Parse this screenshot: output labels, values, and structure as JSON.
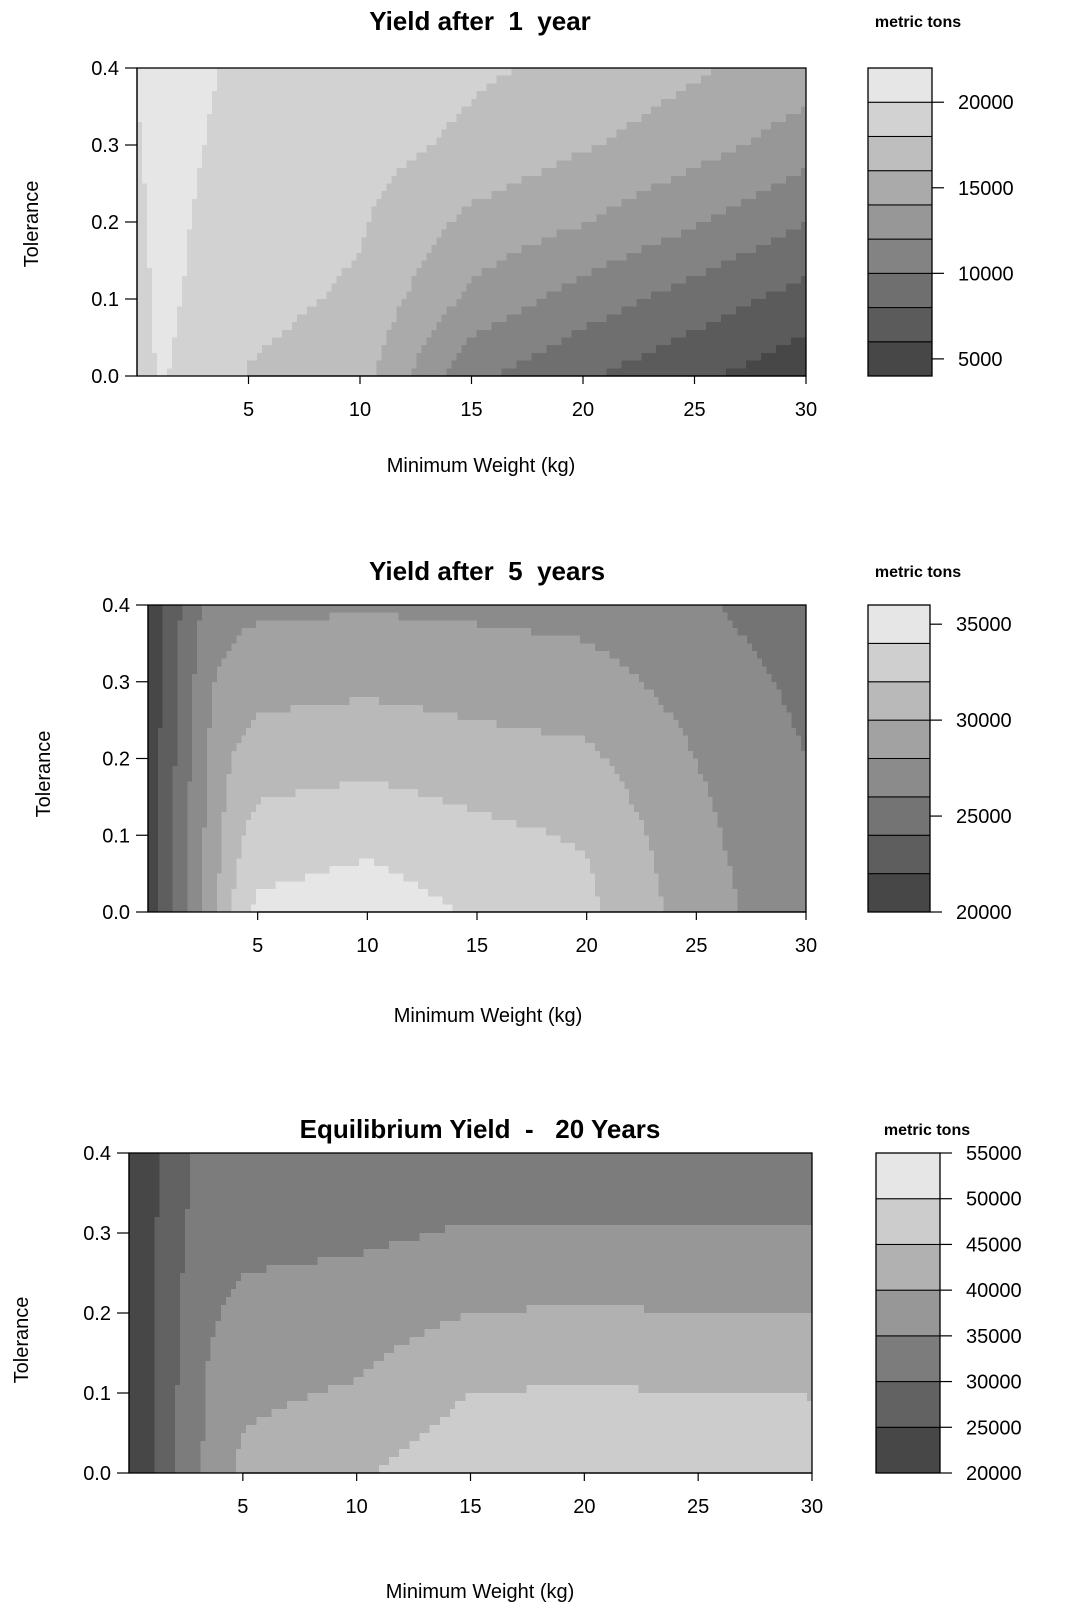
{
  "chart_data": [
    {
      "type": "filled-contour",
      "title": "Yield after  1  year",
      "xlabel": "Minimum Weight (kg)",
      "ylabel": "Tolerance",
      "legend_title": "metric tons",
      "xlim": [
        0,
        30
      ],
      "ylim": [
        0,
        0.4
      ],
      "x_ticks": [
        "5",
        "10",
        "15",
        "20",
        "25",
        "30"
      ],
      "y_ticks": [
        "0.0",
        "0.1",
        "0.2",
        "0.3",
        "0.4"
      ],
      "legend_ticks": [
        "5000",
        "10000",
        "15000",
        "20000"
      ],
      "legend_range": [
        4000,
        22000
      ],
      "levels": [
        4000,
        6000,
        8000,
        10000,
        12000,
        14000,
        16000,
        18000,
        20000,
        22000
      ],
      "x": [
        0,
        1,
        2,
        3,
        4,
        5,
        10,
        15,
        20,
        25,
        30
      ],
      "y": [
        0,
        0.1,
        0.2,
        0.3,
        0.4
      ],
      "z": [
        [
          19000,
          20200,
          19700,
          19100,
          18500,
          17900,
          16800,
          10500,
          8200,
          6400,
          4600
        ],
        [
          19300,
          20400,
          20000,
          19500,
          19100,
          18600,
          17700,
          13500,
          11100,
          9100,
          7200
        ],
        [
          19500,
          20600,
          20200,
          19700,
          19400,
          18900,
          18200,
          15500,
          14100,
          12200,
          10000
        ],
        [
          19800,
          20800,
          20400,
          20000,
          19700,
          19200,
          18800,
          17600,
          16200,
          14800,
          13000
        ],
        [
          20100,
          21000,
          20600,
          20200,
          19900,
          19500,
          19100,
          18300,
          17600,
          16300,
          15000
        ]
      ]
    },
    {
      "type": "filled-contour",
      "title": "Yield after  5  years",
      "xlabel": "Minimum Weight (kg)",
      "ylabel": "Tolerance",
      "legend_title": "metric tons",
      "xlim": [
        0,
        30
      ],
      "ylim": [
        0,
        0.4
      ],
      "x_ticks": [
        "5",
        "10",
        "15",
        "20",
        "25",
        "30"
      ],
      "y_ticks": [
        "0.0",
        "0.1",
        "0.2",
        "0.3",
        "0.4"
      ],
      "legend_ticks": [
        "20000",
        "25000",
        "30000",
        "35000"
      ],
      "legend_range": [
        20000,
        36000
      ],
      "levels": [
        20000,
        22000,
        24000,
        26000,
        28000,
        30000,
        32000,
        34000,
        36000
      ],
      "x": [
        0,
        1,
        2,
        3,
        4,
        5,
        10,
        15,
        20,
        25,
        30
      ],
      "y": [
        0,
        0.1,
        0.2,
        0.3,
        0.4
      ],
      "z": [
        [
          20500,
          23500,
          26500,
          29500,
          32500,
          34500,
          35100,
          33800,
          32500,
          29000,
          26500
        ],
        [
          20500,
          23500,
          26500,
          29200,
          31500,
          32800,
          33500,
          32500,
          31800,
          28500,
          26300
        ],
        [
          20500,
          23300,
          26200,
          28800,
          30200,
          31000,
          31400,
          30800,
          30400,
          28000,
          26000
        ],
        [
          20400,
          23100,
          25800,
          28000,
          28800,
          29300,
          29600,
          29200,
          28800,
          27200,
          25500
        ],
        [
          20300,
          22800,
          25200,
          27000,
          27400,
          27600,
          27800,
          27600,
          27300,
          26300,
          24800
        ]
      ]
    },
    {
      "type": "filled-contour",
      "title": "Equilibrium Yield  -   20 Years",
      "xlabel": "Minimum Weight (kg)",
      "ylabel": "Tolerance",
      "legend_title": "metric tons",
      "xlim": [
        0,
        30
      ],
      "ylim": [
        0,
        0.4
      ],
      "x_ticks": [
        "5",
        "10",
        "15",
        "20",
        "25",
        "30"
      ],
      "y_ticks": [
        "0.0",
        "0.1",
        "0.2",
        "0.3",
        "0.4"
      ],
      "legend_ticks": [
        "20000",
        "25000",
        "30000",
        "35000",
        "40000",
        "45000",
        "50000",
        "55000"
      ],
      "legend_range": [
        20000,
        55000
      ],
      "levels": [
        20000,
        25000,
        30000,
        35000,
        40000,
        45000,
        50000,
        55000
      ],
      "x": [
        0,
        1,
        2,
        3,
        4,
        5,
        10,
        15,
        20,
        25,
        30
      ],
      "y": [
        0,
        0.1,
        0.2,
        0.3,
        0.4
      ],
      "z": [
        [
          21000,
          24500,
          29500,
          34000,
          38500,
          41000,
          44500,
          48500,
          50200,
          49500,
          48500
        ],
        [
          21000,
          24500,
          29500,
          34000,
          37500,
          39000,
          40500,
          45000,
          45500,
          45000,
          44800
        ],
        [
          21000,
          24300,
          29000,
          33000,
          35000,
          36500,
          37500,
          40000,
          40500,
          40000,
          39800
        ],
        [
          20800,
          24000,
          28500,
          31500,
          32500,
          33500,
          34000,
          35500,
          35500,
          35300,
          35200
        ],
        [
          20600,
          23800,
          28000,
          30500,
          31000,
          31500,
          31800,
          32000,
          32000,
          31800,
          31500
        ]
      ]
    }
  ]
}
